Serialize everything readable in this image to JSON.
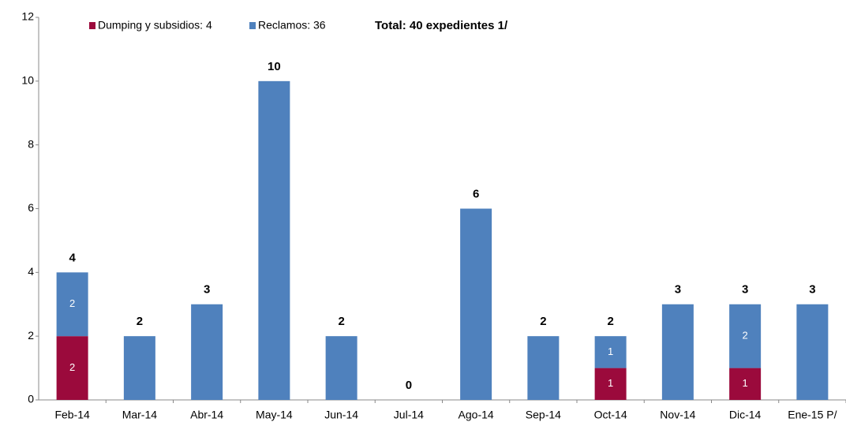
{
  "chart_data": {
    "type": "stacked_bar",
    "categories": [
      "Feb-14",
      "Mar-14",
      "Abr-14",
      "May-14",
      "Jun-14",
      "Jul-14",
      "Ago-14",
      "Sep-14",
      "Oct-14",
      "Nov-14",
      "Dic-14",
      "Ene-15 P/"
    ],
    "series": [
      {
        "name": "Dumping y subsidios: 4",
        "color": "#9b0a3c",
        "values": [
          2,
          0,
          0,
          0,
          0,
          0,
          0,
          0,
          1,
          0,
          1,
          0
        ]
      },
      {
        "name": "Reclamos: 36",
        "color": "#4f81bd",
        "values": [
          2,
          2,
          3,
          10,
          2,
          0,
          6,
          2,
          1,
          3,
          2,
          3
        ]
      }
    ],
    "totals": [
      4,
      2,
      3,
      10,
      2,
      0,
      6,
      2,
      2,
      3,
      3,
      3
    ],
    "annotation": "Total: 40 expedientes 1/",
    "ylim": [
      0,
      12
    ],
    "yticks": [
      0,
      2,
      4,
      6,
      8,
      10,
      12
    ],
    "grid": false
  }
}
